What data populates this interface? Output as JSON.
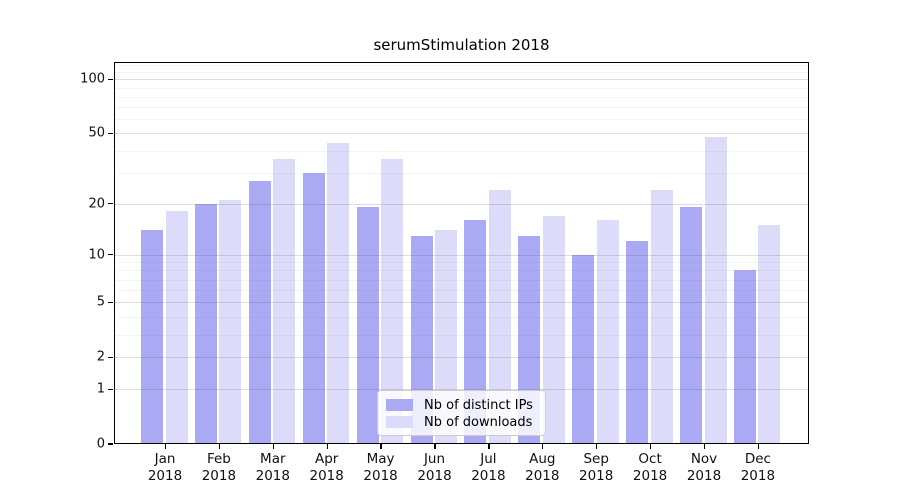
{
  "chart_data": {
    "type": "bar",
    "title": "serumStimulation 2018",
    "categories": [
      {
        "label": "Jan",
        "sublabel": "2018"
      },
      {
        "label": "Feb",
        "sublabel": "2018"
      },
      {
        "label": "Mar",
        "sublabel": "2018"
      },
      {
        "label": "Apr",
        "sublabel": "2018"
      },
      {
        "label": "May",
        "sublabel": "2018"
      },
      {
        "label": "Jun",
        "sublabel": "2018"
      },
      {
        "label": "Jul",
        "sublabel": "2018"
      },
      {
        "label": "Aug",
        "sublabel": "2018"
      },
      {
        "label": "Sep",
        "sublabel": "2018"
      },
      {
        "label": "Oct",
        "sublabel": "2018"
      },
      {
        "label": "Nov",
        "sublabel": "2018"
      },
      {
        "label": "Dec",
        "sublabel": "2018"
      }
    ],
    "series": [
      {
        "name": "Nb of distinct IPs",
        "color": "#a9a9f4",
        "values": [
          14,
          20,
          27,
          30,
          19,
          13,
          16,
          13,
          10,
          12,
          19,
          8
        ]
      },
      {
        "name": "Nb of downloads",
        "color": "#dcdcfa",
        "values": [
          18,
          21,
          36,
          44,
          36,
          14,
          24,
          17,
          16,
          24,
          48,
          15
        ]
      }
    ],
    "y_axis": {
      "scale": "log1p",
      "major_ticks": [
        0,
        1,
        2,
        5,
        10,
        20,
        50,
        100
      ],
      "minor_ticks": [
        3,
        4,
        6,
        7,
        8,
        9,
        30,
        40,
        60,
        70,
        80,
        90,
        110,
        120
      ],
      "range_top_value": 125
    },
    "legend": {
      "position": "bottom-center"
    },
    "grid": "on"
  }
}
